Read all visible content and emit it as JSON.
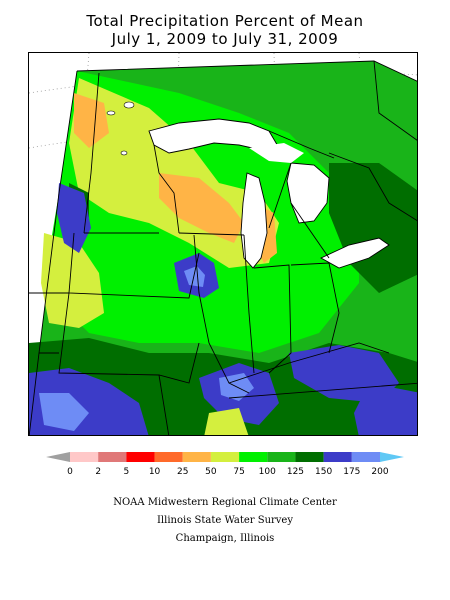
{
  "title": {
    "line1": "Total Precipitation Percent of Mean",
    "line2": "July 1, 2009 to July 31, 2009"
  },
  "legend": {
    "under_color": "#a0a0a0",
    "over_color": "#5fc8f5",
    "bins": [
      {
        "lo": "0",
        "hi": "2",
        "color": "#ffc8c8"
      },
      {
        "lo": "2",
        "hi": "5",
        "color": "#e07878"
      },
      {
        "lo": "5",
        "hi": "10",
        "color": "#ff0000"
      },
      {
        "lo": "10",
        "hi": "25",
        "color": "#ff6a2a"
      },
      {
        "lo": "25",
        "hi": "50",
        "color": "#ffb446"
      },
      {
        "lo": "50",
        "hi": "75",
        "color": "#d4ef3e"
      },
      {
        "lo": "75",
        "hi": "100",
        "color": "#00f000"
      },
      {
        "lo": "100",
        "hi": "125",
        "color": "#19b419"
      },
      {
        "lo": "125",
        "hi": "150",
        "color": "#006e00"
      },
      {
        "lo": "150",
        "hi": "175",
        "color": "#3c3cc8"
      },
      {
        "lo": "175",
        "hi": "200",
        "color": "#6e8cf5"
      }
    ],
    "tick_labels": [
      "0",
      "2",
      "5",
      "10",
      "25",
      "50",
      "75",
      "100",
      "125",
      "150",
      "175",
      "200"
    ]
  },
  "credits": {
    "line1": "NOAA Midwestern Regional Climate Center",
    "line2": "Illinois State Water Survey",
    "line3": "Champaign, Illinois"
  },
  "map": {
    "region": "Midwestern United States",
    "lake_color": "#ffffff",
    "border_color": "#000000",
    "graticule_color": "#9a9a9a"
  }
}
